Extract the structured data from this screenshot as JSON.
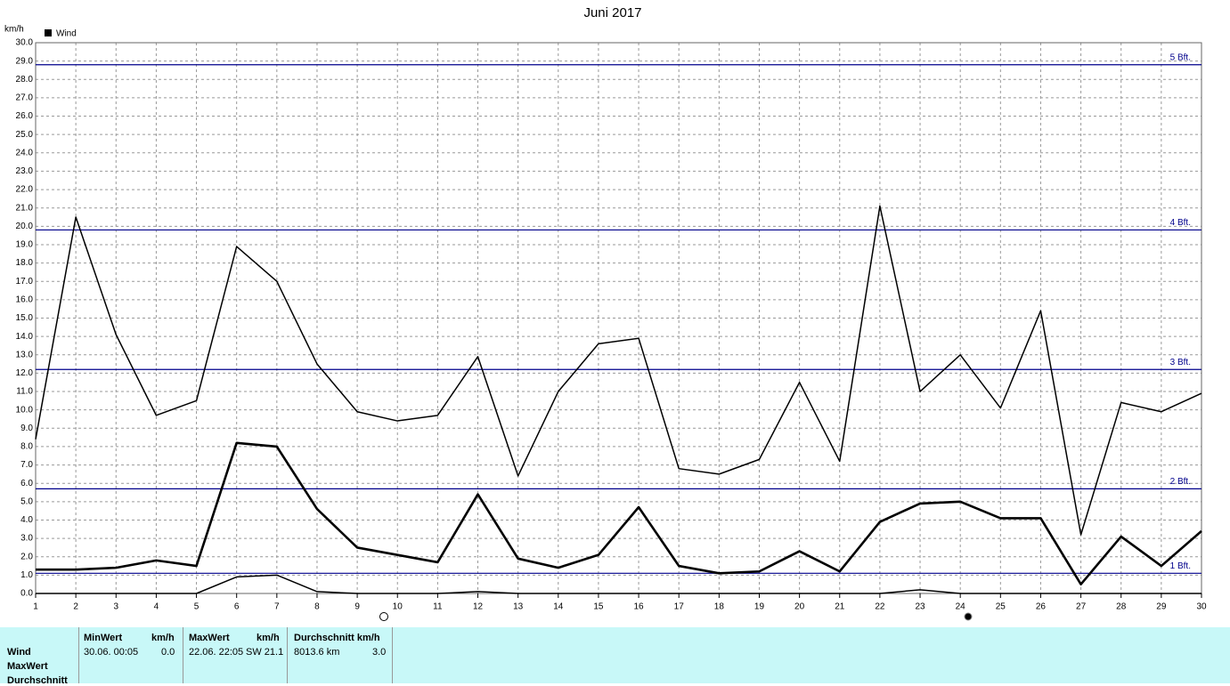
{
  "chart_data": {
    "type": "line",
    "title": "Juni 2017",
    "y_label": "km/h",
    "categories": [
      "1",
      "2",
      "3",
      "4",
      "5",
      "6",
      "7",
      "8",
      "9",
      "10",
      "11",
      "12",
      "13",
      "14",
      "15",
      "16",
      "17",
      "18",
      "19",
      "20",
      "21",
      "22",
      "23",
      "24",
      "25",
      "26",
      "27",
      "28",
      "29",
      "30"
    ],
    "series": [
      {
        "name": "Wind",
        "color": "#000000",
        "values": [
          8.4,
          20.5,
          14.1,
          9.7,
          10.5,
          18.9,
          17.0,
          12.5,
          9.9,
          9.4,
          9.7,
          12.9,
          6.4,
          11.0,
          13.6,
          13.9,
          6.8,
          6.5,
          7.3,
          11.5,
          7.2,
          21.1,
          11.0,
          13.0,
          10.1,
          15.4,
          3.2,
          10.4,
          9.9,
          10.9
        ]
      },
      {
        "color": "#000000",
        "values": [
          1.3,
          1.3,
          1.4,
          1.8,
          1.5,
          8.2,
          8.0,
          4.6,
          2.5,
          2.1,
          1.7,
          5.4,
          1.9,
          1.4,
          2.1,
          4.7,
          1.5,
          1.1,
          1.2,
          2.3,
          1.2,
          3.9,
          4.9,
          5.0,
          4.1,
          4.1,
          0.5,
          3.1,
          1.5,
          3.4
        ]
      },
      {
        "color": "#000000",
        "values": [
          0,
          0,
          0,
          0,
          0,
          0.9,
          1.0,
          0.1,
          0,
          0,
          0,
          0.1,
          0,
          0,
          0,
          0,
          0,
          0,
          0,
          0,
          0,
          0,
          0.2,
          0,
          0,
          0,
          0,
          0,
          0,
          0
        ]
      }
    ],
    "ylim": [
      0,
      30
    ],
    "yticks": [
      {
        "value": 0,
        "label": "0.0"
      },
      {
        "value": 1,
        "label": "1.0"
      },
      {
        "value": 2,
        "label": "2.0"
      },
      {
        "value": 3,
        "label": "3.0"
      },
      {
        "value": 4,
        "label": "4.0"
      },
      {
        "value": 5,
        "label": "5.0"
      },
      {
        "value": 6,
        "label": "6.0"
      },
      {
        "value": 7,
        "label": "7.0"
      },
      {
        "value": 8,
        "label": "8.0"
      },
      {
        "value": 9,
        "label": "9.0"
      },
      {
        "value": 10,
        "label": "10.0"
      },
      {
        "value": 11,
        "label": "11.0"
      },
      {
        "value": 12,
        "label": "12.0"
      },
      {
        "value": 13,
        "label": "13.0"
      },
      {
        "value": 14,
        "label": "14.0"
      },
      {
        "value": 15,
        "label": "15.0"
      },
      {
        "value": 16,
        "label": "16.0"
      },
      {
        "value": 17,
        "label": "17.0"
      },
      {
        "value": 18,
        "label": "18.0"
      },
      {
        "value": 19,
        "label": "19.0"
      },
      {
        "value": 20,
        "label": "20.0"
      },
      {
        "value": 21,
        "label": "21.0"
      },
      {
        "value": 22,
        "label": "22.0"
      },
      {
        "value": 23,
        "label": "23.0"
      },
      {
        "value": 24,
        "label": "24.0"
      },
      {
        "value": 25,
        "label": "25.0"
      },
      {
        "value": 26,
        "label": "26.0"
      },
      {
        "value": 27,
        "label": "27.0"
      },
      {
        "value": 28,
        "label": "28.0"
      },
      {
        "value": 29,
        "label": "29.0"
      },
      {
        "value": 30,
        "label": "30.0"
      }
    ],
    "grid": true,
    "reference_lines": [
      {
        "value": 1.1,
        "label": "1 Bft."
      },
      {
        "value": 5.7,
        "label": "2 Bft."
      },
      {
        "value": 12.2,
        "label": "3 Bft."
      },
      {
        "value": 19.8,
        "label": "4 Bft."
      },
      {
        "value": 28.8,
        "label": "5 Bft."
      }
    ],
    "reference_color": "#00008b"
  },
  "table": {
    "headers": [
      "MinWert",
      "km/h",
      "MaxWert",
      "km/h",
      "Durchschnitt km/h"
    ],
    "row_labels": [
      "Wind",
      "MaxWert",
      "Durchschnitt"
    ],
    "row": [
      "30.06.  00:05",
      "0.0",
      "22.06.  22:05",
      "SW 21.1",
      "8013.6 km",
      "3.0"
    ]
  }
}
